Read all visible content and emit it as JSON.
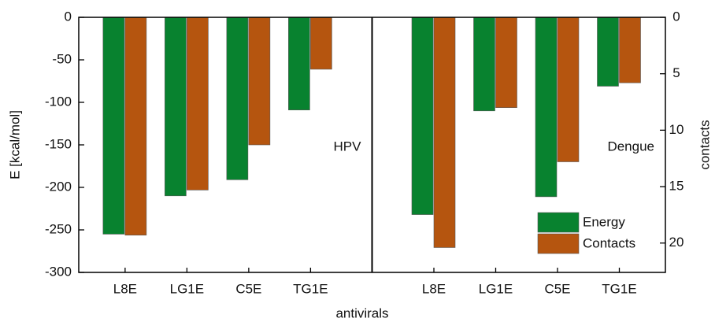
{
  "chart_data": {
    "type": "bar",
    "panels": [
      "HPV",
      "Dengue"
    ],
    "categories": [
      "L8E",
      "LG1E",
      "C5E",
      "TG1E",
      "L8E",
      "LG1E",
      "C5E",
      "TG1E"
    ],
    "series": [
      {
        "name": "Energy",
        "color": "#08822f",
        "values": [
          -255,
          -210,
          -191,
          -109,
          -232,
          -110,
          -211,
          -81
        ]
      },
      {
        "name": "Contacts",
        "color": "#b5550f",
        "axis": "y2",
        "values": [
          19.3,
          15.3,
          11.3,
          4.6,
          20.4,
          8.0,
          12.8,
          5.8
        ]
      }
    ],
    "xlabel": "antivirals",
    "ylabel": "E [kcal/mol]",
    "y2label": "contacts",
    "ylim": [
      -300,
      0
    ],
    "yticks": [
      0,
      -50,
      -100,
      -150,
      -200,
      -250,
      -300
    ],
    "y2lim": [
      22.6,
      0
    ],
    "y2ticks": [
      0,
      5,
      10,
      15,
      20
    ],
    "legend": "lower right"
  }
}
